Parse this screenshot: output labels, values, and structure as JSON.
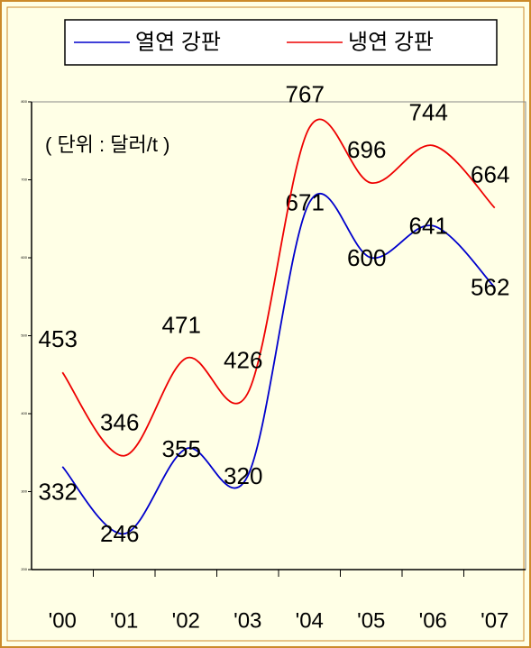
{
  "chart_data": {
    "type": "line",
    "annotation": "( 단위 : 달러/t )",
    "categories": [
      "'00",
      "'01",
      "'02",
      "'03",
      "'04",
      "'05",
      "'06",
      "'07"
    ],
    "series": [
      {
        "name": "열연 강판",
        "color": "#0000cc",
        "values": [
          332,
          246,
          355,
          320,
          671,
          600,
          641,
          562
        ]
      },
      {
        "name": "냉연 강판",
        "color": "#ee0000",
        "values": [
          453,
          346,
          471,
          426,
          767,
          696,
          744,
          664
        ]
      }
    ],
    "ylim": [
      200,
      800
    ],
    "yticks": [
      200,
      300,
      400,
      500,
      600,
      700,
      800
    ],
    "grid": false
  }
}
